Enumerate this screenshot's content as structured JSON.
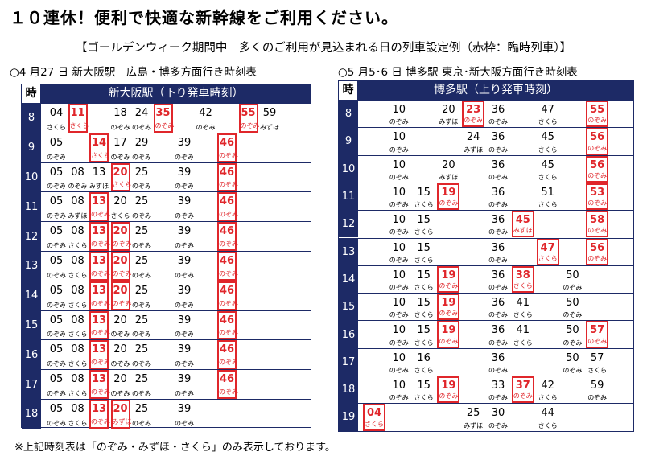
{
  "title": "１０連休！便利で快適な新幹線をご利用ください。",
  "subtitle": "【ゴールデンウィーク期間中　多くのご利用が見込まれる日の列車設定例（赤枠：臨時列車）】",
  "footnote": "※上記時刻表は「のぞみ・みずほ・さくら」のみ表示しております。",
  "colors": {
    "navy": "#1d2a66",
    "rinji": "#e0262b"
  },
  "timetables": [
    {
      "caption": "○4 月27 日 新大阪駅　広島・博多方面行き時刻表",
      "hour_header": "時",
      "station_header": "新大阪駅（下り発車時刻）",
      "rows": [
        {
          "hour": "8",
          "trains": [
            {
              "min": "04",
              "type": "さくら",
              "col": 0
            },
            {
              "min": "11",
              "type": "さくら",
              "col": 1,
              "rinji": true
            },
            {
              "min": "18",
              "type": "のぞみ",
              "col": 3
            },
            {
              "min": "24",
              "type": "のぞみ",
              "col": 4
            },
            {
              "min": "35",
              "type": "のぞみ",
              "col": 5,
              "rinji": true
            },
            {
              "min": "42",
              "type": "のぞみ",
              "col": 7
            },
            {
              "min": "55",
              "type": "のぞみ",
              "col": 9,
              "rinji": true
            },
            {
              "min": "59",
              "type": "みずほ",
              "col": 10
            }
          ]
        },
        {
          "hour": "9",
          "trains": [
            {
              "min": "05",
              "type": "のぞみ",
              "col": 0
            },
            {
              "min": "14",
              "type": "さくら",
              "col": 2,
              "rinji": true
            },
            {
              "min": "17",
              "type": "のぞみ",
              "col": 3
            },
            {
              "min": "29",
              "type": "のぞみ",
              "col": 4
            },
            {
              "min": "39",
              "type": "のぞみ",
              "col": 6
            },
            {
              "min": "46",
              "type": "のぞみ",
              "col": 8,
              "rinji": true
            }
          ]
        },
        {
          "hour": "10",
          "trains": [
            {
              "min": "05",
              "type": "のぞみ",
              "col": 0
            },
            {
              "min": "08",
              "type": "のぞみ",
              "col": 1
            },
            {
              "min": "13",
              "type": "みずほ",
              "col": 2
            },
            {
              "min": "20",
              "type": "さくら",
              "col": 3,
              "rinji": true
            },
            {
              "min": "25",
              "type": "のぞみ",
              "col": 4
            },
            {
              "min": "39",
              "type": "のぞみ",
              "col": 6
            },
            {
              "min": "46",
              "type": "のぞみ",
              "col": 8,
              "rinji": true
            }
          ]
        },
        {
          "hour": "11",
          "trains": [
            {
              "min": "05",
              "type": "のぞみ",
              "col": 0
            },
            {
              "min": "08",
              "type": "みずほ",
              "col": 1
            },
            {
              "min": "13",
              "type": "のぞみ",
              "col": 2,
              "rinji": true
            },
            {
              "min": "20",
              "type": "さくら",
              "col": 3
            },
            {
              "min": "25",
              "type": "のぞみ",
              "col": 4
            },
            {
              "min": "39",
              "type": "のぞみ",
              "col": 6
            },
            {
              "min": "46",
              "type": "のぞみ",
              "col": 8,
              "rinji": true
            }
          ]
        },
        {
          "hour": "12",
          "trains": [
            {
              "min": "05",
              "type": "のぞみ",
              "col": 0
            },
            {
              "min": "08",
              "type": "さくら",
              "col": 1
            },
            {
              "min": "13",
              "type": "のぞみ",
              "col": 2,
              "rinji": true
            },
            {
              "min": "20",
              "type": "のぞみ",
              "col": 3,
              "rinji": true
            },
            {
              "min": "25",
              "type": "のぞみ",
              "col": 4
            },
            {
              "min": "39",
              "type": "のぞみ",
              "col": 6
            },
            {
              "min": "46",
              "type": "のぞみ",
              "col": 8,
              "rinji": true
            }
          ]
        },
        {
          "hour": "13",
          "trains": [
            {
              "min": "05",
              "type": "のぞみ",
              "col": 0
            },
            {
              "min": "08",
              "type": "さくら",
              "col": 1
            },
            {
              "min": "13",
              "type": "のぞみ",
              "col": 2,
              "rinji": true
            },
            {
              "min": "20",
              "type": "のぞみ",
              "col": 3,
              "rinji": true
            },
            {
              "min": "25",
              "type": "のぞみ",
              "col": 4
            },
            {
              "min": "39",
              "type": "のぞみ",
              "col": 6
            },
            {
              "min": "46",
              "type": "のぞみ",
              "col": 8,
              "rinji": true
            }
          ]
        },
        {
          "hour": "14",
          "trains": [
            {
              "min": "05",
              "type": "のぞみ",
              "col": 0
            },
            {
              "min": "08",
              "type": "さくら",
              "col": 1
            },
            {
              "min": "13",
              "type": "のぞみ",
              "col": 2,
              "rinji": true
            },
            {
              "min": "20",
              "type": "のぞみ",
              "col": 3,
              "rinji": true
            },
            {
              "min": "25",
              "type": "のぞみ",
              "col": 4
            },
            {
              "min": "39",
              "type": "のぞみ",
              "col": 6
            },
            {
              "min": "46",
              "type": "のぞみ",
              "col": 8,
              "rinji": true
            }
          ]
        },
        {
          "hour": "15",
          "trains": [
            {
              "min": "05",
              "type": "のぞみ",
              "col": 0
            },
            {
              "min": "08",
              "type": "さくら",
              "col": 1
            },
            {
              "min": "13",
              "type": "のぞみ",
              "col": 2,
              "rinji": true
            },
            {
              "min": "20",
              "type": "のぞみ",
              "col": 3
            },
            {
              "min": "25",
              "type": "のぞみ",
              "col": 4
            },
            {
              "min": "39",
              "type": "のぞみ",
              "col": 6
            },
            {
              "min": "46",
              "type": "のぞみ",
              "col": 8,
              "rinji": true
            }
          ]
        },
        {
          "hour": "16",
          "trains": [
            {
              "min": "05",
              "type": "のぞみ",
              "col": 0
            },
            {
              "min": "08",
              "type": "さくら",
              "col": 1
            },
            {
              "min": "13",
              "type": "のぞみ",
              "col": 2,
              "rinji": true
            },
            {
              "min": "20",
              "type": "のぞみ",
              "col": 3
            },
            {
              "min": "25",
              "type": "のぞみ",
              "col": 4
            },
            {
              "min": "39",
              "type": "のぞみ",
              "col": 6
            },
            {
              "min": "46",
              "type": "のぞみ",
              "col": 8,
              "rinji": true
            }
          ]
        },
        {
          "hour": "17",
          "trains": [
            {
              "min": "05",
              "type": "のぞみ",
              "col": 0
            },
            {
              "min": "08",
              "type": "さくら",
              "col": 1
            },
            {
              "min": "13",
              "type": "のぞみ",
              "col": 2,
              "rinji": true
            },
            {
              "min": "20",
              "type": "のぞみ",
              "col": 3
            },
            {
              "min": "25",
              "type": "のぞみ",
              "col": 4
            },
            {
              "min": "39",
              "type": "のぞみ",
              "col": 6
            },
            {
              "min": "46",
              "type": "のぞみ",
              "col": 8,
              "rinji": true
            }
          ]
        },
        {
          "hour": "18",
          "trains": [
            {
              "min": "05",
              "type": "のぞみ",
              "col": 0
            },
            {
              "min": "08",
              "type": "さくら",
              "col": 1
            },
            {
              "min": "13",
              "type": "のぞみ",
              "col": 2,
              "rinji": true
            },
            {
              "min": "20",
              "type": "みずほ",
              "col": 3,
              "rinji": true
            },
            {
              "min": "25",
              "type": "のぞみ",
              "col": 4
            },
            {
              "min": "39",
              "type": "のぞみ",
              "col": 6
            }
          ]
        }
      ]
    },
    {
      "caption": "○5 月5･6 日 博多駅 東京･新大阪方面行き時刻表",
      "hour_header": "時",
      "station_header": "博多駅（上り発車時刻）",
      "rows": [
        {
          "hour": "8",
          "trains": [
            {
              "min": "10",
              "type": "のぞみ",
              "col": 1
            },
            {
              "min": "20",
              "type": "みずほ",
              "col": 3
            },
            {
              "min": "23",
              "type": "のぞみ",
              "col": 4,
              "rinji": true
            },
            {
              "min": "36",
              "type": "のぞみ",
              "col": 5
            },
            {
              "min": "47",
              "type": "さくら",
              "col": 7
            },
            {
              "min": "55",
              "type": "のぞみ",
              "col": 9,
              "rinji": true
            }
          ]
        },
        {
          "hour": "9",
          "trains": [
            {
              "min": "10",
              "type": "のぞみ",
              "col": 1
            },
            {
              "min": "24",
              "type": "みずほ",
              "col": 4
            },
            {
              "min": "36",
              "type": "のぞみ",
              "col": 5
            },
            {
              "min": "45",
              "type": "さくら",
              "col": 7
            },
            {
              "min": "56",
              "type": "のぞみ",
              "col": 9,
              "rinji": true
            }
          ]
        },
        {
          "hour": "10",
          "trains": [
            {
              "min": "10",
              "type": "のぞみ",
              "col": 1
            },
            {
              "min": "20",
              "type": "みずほ",
              "col": 3
            },
            {
              "min": "36",
              "type": "のぞみ",
              "col": 5
            },
            {
              "min": "45",
              "type": "さくら",
              "col": 7
            },
            {
              "min": "56",
              "type": "のぞみ",
              "col": 9,
              "rinji": true
            }
          ]
        },
        {
          "hour": "11",
          "trains": [
            {
              "min": "10",
              "type": "のぞみ",
              "col": 1
            },
            {
              "min": "15",
              "type": "さくら",
              "col": 2
            },
            {
              "min": "19",
              "type": "のぞみ",
              "col": 3,
              "rinji": true
            },
            {
              "min": "36",
              "type": "のぞみ",
              "col": 5
            },
            {
              "min": "51",
              "type": "さくら",
              "col": 7
            },
            {
              "min": "53",
              "type": "のぞみ",
              "col": 9,
              "rinji": true
            }
          ]
        },
        {
          "hour": "12",
          "trains": [
            {
              "min": "10",
              "type": "のぞみ",
              "col": 1
            },
            {
              "min": "15",
              "type": "さくら",
              "col": 2
            },
            {
              "min": "36",
              "type": "のぞみ",
              "col": 5
            },
            {
              "min": "45",
              "type": "みずほ",
              "col": 6,
              "rinji": true
            },
            {
              "min": "58",
              "type": "のぞみ",
              "col": 9,
              "rinji": true
            }
          ]
        },
        {
          "hour": "13",
          "trains": [
            {
              "min": "10",
              "type": "のぞみ",
              "col": 1
            },
            {
              "min": "15",
              "type": "さくら",
              "col": 2
            },
            {
              "min": "36",
              "type": "のぞみ",
              "col": 5
            },
            {
              "min": "47",
              "type": "さくら",
              "col": 7,
              "rinji": true
            },
            {
              "min": "56",
              "type": "のぞみ",
              "col": 9,
              "rinji": true
            }
          ]
        },
        {
          "hour": "14",
          "trains": [
            {
              "min": "10",
              "type": "のぞみ",
              "col": 1
            },
            {
              "min": "15",
              "type": "さくら",
              "col": 2
            },
            {
              "min": "19",
              "type": "のぞみ",
              "col": 3,
              "rinji": true
            },
            {
              "min": "36",
              "type": "のぞみ",
              "col": 5
            },
            {
              "min": "38",
              "type": "さくら",
              "col": 6,
              "rinji": true
            },
            {
              "min": "50",
              "type": "のぞみ",
              "col": 8
            }
          ]
        },
        {
          "hour": "15",
          "trains": [
            {
              "min": "10",
              "type": "のぞみ",
              "col": 1
            },
            {
              "min": "15",
              "type": "さくら",
              "col": 2
            },
            {
              "min": "19",
              "type": "のぞみ",
              "col": 3,
              "rinji": true
            },
            {
              "min": "36",
              "type": "のぞみ",
              "col": 5
            },
            {
              "min": "41",
              "type": "さくら",
              "col": 6
            },
            {
              "min": "50",
              "type": "のぞみ",
              "col": 8
            }
          ]
        },
        {
          "hour": "16",
          "trains": [
            {
              "min": "10",
              "type": "のぞみ",
              "col": 1
            },
            {
              "min": "15",
              "type": "さくら",
              "col": 2
            },
            {
              "min": "19",
              "type": "のぞみ",
              "col": 3,
              "rinji": true
            },
            {
              "min": "36",
              "type": "のぞみ",
              "col": 5
            },
            {
              "min": "41",
              "type": "さくら",
              "col": 6
            },
            {
              "min": "50",
              "type": "のぞみ",
              "col": 8
            },
            {
              "min": "57",
              "type": "のぞみ",
              "col": 9,
              "rinji": true
            }
          ]
        },
        {
          "hour": "17",
          "trains": [
            {
              "min": "10",
              "type": "のぞみ",
              "col": 1
            },
            {
              "min": "16",
              "type": "さくら",
              "col": 2
            },
            {
              "min": "36",
              "type": "のぞみ",
              "col": 5
            },
            {
              "min": "50",
              "type": "のぞみ",
              "col": 8
            },
            {
              "min": "57",
              "type": "さくら",
              "col": 9
            }
          ]
        },
        {
          "hour": "18",
          "trains": [
            {
              "min": "10",
              "type": "のぞみ",
              "col": 1
            },
            {
              "min": "15",
              "type": "さくら",
              "col": 2
            },
            {
              "min": "19",
              "type": "のぞみ",
              "col": 3,
              "rinji": true
            },
            {
              "min": "33",
              "type": "のぞみ",
              "col": 5
            },
            {
              "min": "37",
              "type": "のぞみ",
              "col": 6,
              "rinji": true
            },
            {
              "min": "42",
              "type": "さくら",
              "col": 7
            },
            {
              "min": "59",
              "type": "のぞみ",
              "col": 9
            }
          ]
        },
        {
          "hour": "19",
          "trains": [
            {
              "min": "04",
              "type": "さくら",
              "col": 0,
              "rinji": true
            },
            {
              "min": "25",
              "type": "みずほ",
              "col": 4
            },
            {
              "min": "30",
              "type": "のぞみ",
              "col": 5
            },
            {
              "min": "44",
              "type": "さくら",
              "col": 7
            }
          ]
        }
      ]
    }
  ]
}
